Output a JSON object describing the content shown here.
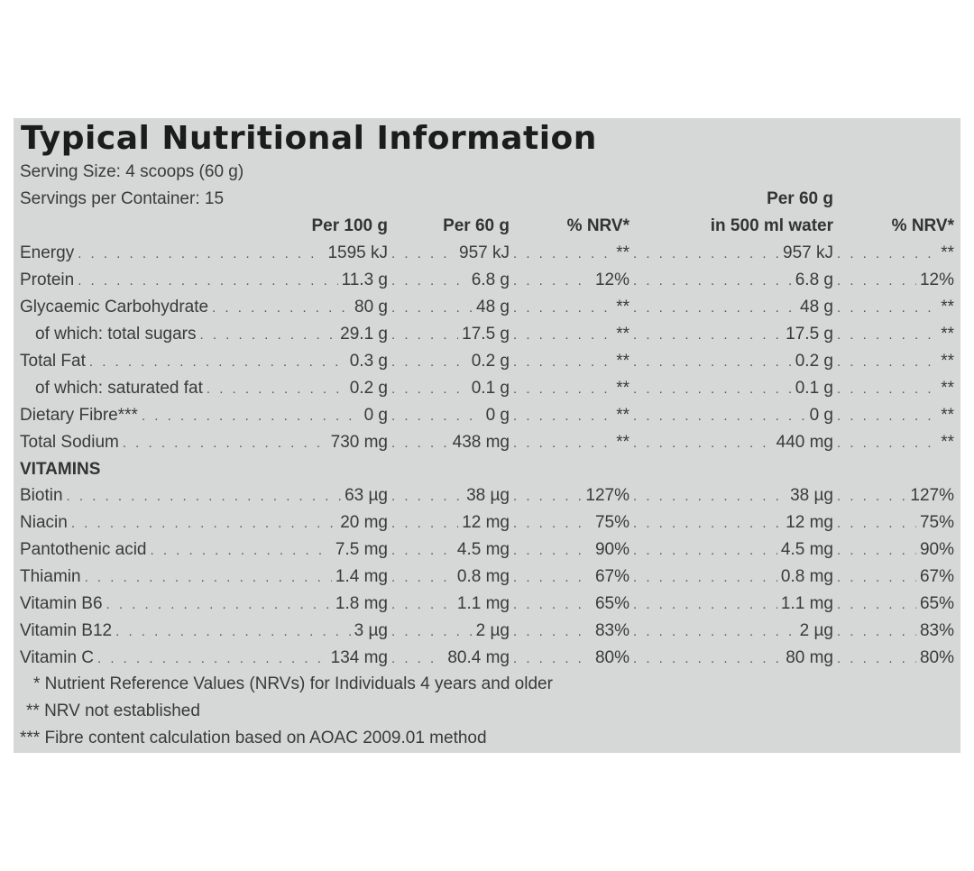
{
  "title": "Typical Nutritional Information",
  "serving_size": "Serving Size: 4 scoops (60 g)",
  "servings_per_container": "Servings per Container: 15",
  "columns": {
    "per100": "Per 100 g",
    "per60": "Per 60 g",
    "nrv1": "% NRV*",
    "per60water_line1": "Per 60 g",
    "per60water_line2": "in 500 ml water",
    "nrv2": "% NRV*"
  },
  "nutrients": [
    {
      "name": "Energy",
      "per100": "1595 kJ",
      "per60": "957 kJ",
      "nrv": "**",
      "water": "957 kJ",
      "nrv_water": "**",
      "indent": false
    },
    {
      "name": "Protein",
      "per100": "11.3 g",
      "per60": "6.8 g",
      "nrv": "12%",
      "water": "6.8 g",
      "nrv_water": "12%",
      "indent": false
    },
    {
      "name": "Glycaemic Carbohydrate",
      "per100": "80 g",
      "per60": "48 g",
      "nrv": "**",
      "water": "48 g",
      "nrv_water": "**",
      "indent": false
    },
    {
      "name": "of which: total sugars",
      "per100": "29.1 g",
      "per60": "17.5 g",
      "nrv": "**",
      "water": "17.5 g",
      "nrv_water": "**",
      "indent": true
    },
    {
      "name": "Total Fat",
      "per100": "0.3 g",
      "per60": "0.2 g",
      "nrv": "**",
      "water": "0.2 g",
      "nrv_water": "**",
      "indent": false
    },
    {
      "name": "of which: saturated fat",
      "per100": "0.2 g",
      "per60": "0.1 g",
      "nrv": "**",
      "water": "0.1 g",
      "nrv_water": "**",
      "indent": true
    },
    {
      "name": "Dietary Fibre***",
      "per100": "0 g",
      "per60": "0 g",
      "nrv": "**",
      "water": "0 g",
      "nrv_water": "**",
      "indent": false
    },
    {
      "name": "Total Sodium",
      "per100": "730 mg",
      "per60": "438 mg",
      "nrv": "**",
      "water": "440 mg",
      "nrv_water": "**",
      "indent": false
    }
  ],
  "vitamins_heading": "VITAMINS",
  "vitamins": [
    {
      "name": "Biotin",
      "per100": "63 µg",
      "per60": "38 µg",
      "nrv": "127%",
      "water": "38 µg",
      "nrv_water": "127%",
      "indent": false
    },
    {
      "name": "Niacin",
      "per100": "20 mg",
      "per60": "12 mg",
      "nrv": "75%",
      "water": "12 mg",
      "nrv_water": "75%",
      "indent": false
    },
    {
      "name": "Pantothenic acid",
      "per100": "7.5 mg",
      "per60": "4.5 mg",
      "nrv": "90%",
      "water": "4.5 mg",
      "nrv_water": "90%",
      "indent": false
    },
    {
      "name": "Thiamin",
      "per100": "1.4 mg",
      "per60": "0.8 mg",
      "nrv": "67%",
      "water": "0.8 mg",
      "nrv_water": "67%",
      "indent": false
    },
    {
      "name": "Vitamin B6",
      "per100": "1.8 mg",
      "per60": "1.1 mg",
      "nrv": "65%",
      "water": "1.1 mg",
      "nrv_water": "65%",
      "indent": false
    },
    {
      "name": "Vitamin B12",
      "per100": "3 µg",
      "per60": "2 µg",
      "nrv": "83%",
      "water": "2 µg",
      "nrv_water": "83%",
      "indent": false
    },
    {
      "name": "Vitamin C",
      "per100": "134 mg",
      "per60": "80.4 mg",
      "nrv": "80%",
      "water": "80 mg",
      "nrv_water": "80%",
      "indent": false
    }
  ],
  "footnotes": [
    "* Nutrient Reference Values (NRVs) for Individuals 4 years and older",
    "** NRV not established",
    "*** Fibre content calculation based on AOAC 2009.01 method"
  ],
  "colors": {
    "panel": "#d6d7d7",
    "text": "#333333",
    "title": "#1c1c1c",
    "page": "#ffffff"
  }
}
